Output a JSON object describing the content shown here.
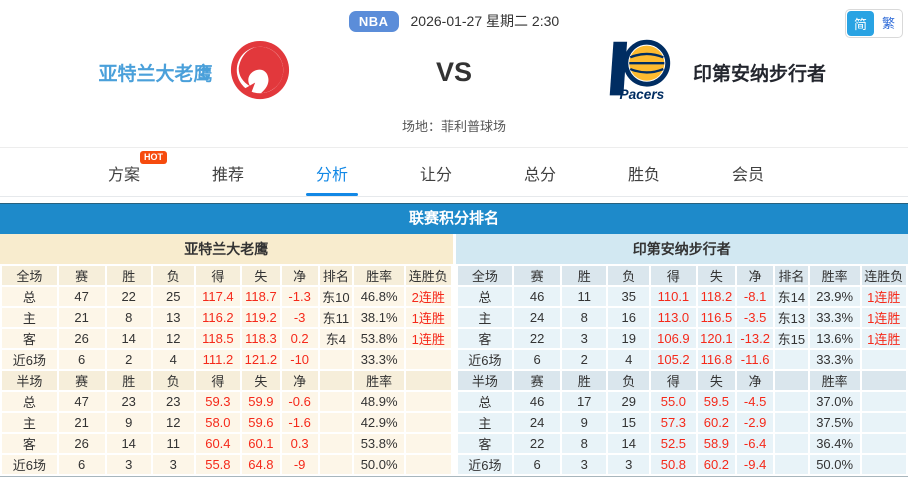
{
  "topbar": {
    "league_badge": "NBA",
    "datetime": "2026-01-27 星期二 2:30",
    "lang_simplified": "简",
    "lang_traditional": "繁"
  },
  "header": {
    "home_team": "亚特兰大老鹰",
    "away_team": "印第安纳步行者",
    "vs": "VS",
    "venue": "场地：菲利普球场",
    "away_logo_text": "Pacers"
  },
  "tabs": [
    {
      "label": "方案",
      "badge": "HOT"
    },
    {
      "label": "推荐"
    },
    {
      "label": "分析",
      "active": true
    },
    {
      "label": "让分"
    },
    {
      "label": "总分"
    },
    {
      "label": "胜负"
    },
    {
      "label": "会员"
    }
  ],
  "section_title": "联赛积分排名",
  "colors": {
    "title_bar_blue": "#1e8aca",
    "active_tab_blue": "#1288e6",
    "stat_red": "#f5291a",
    "hot_badge_orange": "#f64b0e",
    "nba_badge_blue": "#5b8dd9",
    "lang_button_blue": "#29a3e3",
    "home_table_bg": "#fdf6e8",
    "away_table_bg": "#e8f3f8",
    "hawks_red": "#e2383c",
    "pacers_navy": "#002d62",
    "pacers_gold": "#fdbb30"
  },
  "tables": [
    {
      "team": "亚特兰大老鹰",
      "sections": [
        {
          "header": [
            "全场",
            "赛",
            "胜",
            "负",
            "得",
            "失",
            "净",
            "排名",
            "胜率",
            "连胜负"
          ],
          "rows": [
            [
              "总",
              "47",
              "22",
              "25",
              "117.4",
              "118.7",
              "-1.3",
              "东10",
              "46.8%",
              "2连胜"
            ],
            [
              "主",
              "21",
              "8",
              "13",
              "116.2",
              "119.2",
              "-3",
              "东11",
              "38.1%",
              "1连胜"
            ],
            [
              "客",
              "26",
              "14",
              "12",
              "118.5",
              "118.3",
              "0.2",
              "东4",
              "53.8%",
              "1连胜"
            ],
            [
              "近6场",
              "6",
              "2",
              "4",
              "111.2",
              "121.2",
              "-10",
              "",
              "33.3%",
              ""
            ]
          ]
        },
        {
          "header": [
            "半场",
            "赛",
            "胜",
            "负",
            "得",
            "失",
            "净",
            "",
            "胜率",
            ""
          ],
          "rows": [
            [
              "总",
              "47",
              "23",
              "23",
              "59.3",
              "59.9",
              "-0.6",
              "",
              "48.9%",
              ""
            ],
            [
              "主",
              "21",
              "9",
              "12",
              "58.0",
              "59.6",
              "-1.6",
              "",
              "42.9%",
              ""
            ],
            [
              "客",
              "26",
              "14",
              "11",
              "60.4",
              "60.1",
              "0.3",
              "",
              "53.8%",
              ""
            ],
            [
              "近6场",
              "6",
              "3",
              "3",
              "55.8",
              "64.8",
              "-9",
              "",
              "50.0%",
              ""
            ]
          ]
        }
      ]
    },
    {
      "team": "印第安纳步行者",
      "sections": [
        {
          "header": [
            "全场",
            "赛",
            "胜",
            "负",
            "得",
            "失",
            "净",
            "排名",
            "胜率",
            "连胜负"
          ],
          "rows": [
            [
              "总",
              "46",
              "11",
              "35",
              "110.1",
              "118.2",
              "-8.1",
              "东14",
              "23.9%",
              "1连胜"
            ],
            [
              "主",
              "24",
              "8",
              "16",
              "113.0",
              "116.5",
              "-3.5",
              "东13",
              "33.3%",
              "1连胜"
            ],
            [
              "客",
              "22",
              "3",
              "19",
              "106.9",
              "120.1",
              "-13.2",
              "东15",
              "13.6%",
              "1连胜"
            ],
            [
              "近6场",
              "6",
              "2",
              "4",
              "105.2",
              "116.8",
              "-11.6",
              "",
              "33.3%",
              ""
            ]
          ]
        },
        {
          "header": [
            "半场",
            "赛",
            "胜",
            "负",
            "得",
            "失",
            "净",
            "",
            "胜率",
            ""
          ],
          "rows": [
            [
              "总",
              "46",
              "17",
              "29",
              "55.0",
              "59.5",
              "-4.5",
              "",
              "37.0%",
              ""
            ],
            [
              "主",
              "24",
              "9",
              "15",
              "57.3",
              "60.2",
              "-2.9",
              "",
              "37.5%",
              ""
            ],
            [
              "客",
              "22",
              "8",
              "14",
              "52.5",
              "58.9",
              "-6.4",
              "",
              "36.4%",
              ""
            ],
            [
              "近6场",
              "6",
              "3",
              "3",
              "50.8",
              "60.2",
              "-9.4",
              "",
              "50.0%",
              ""
            ]
          ]
        }
      ]
    }
  ]
}
